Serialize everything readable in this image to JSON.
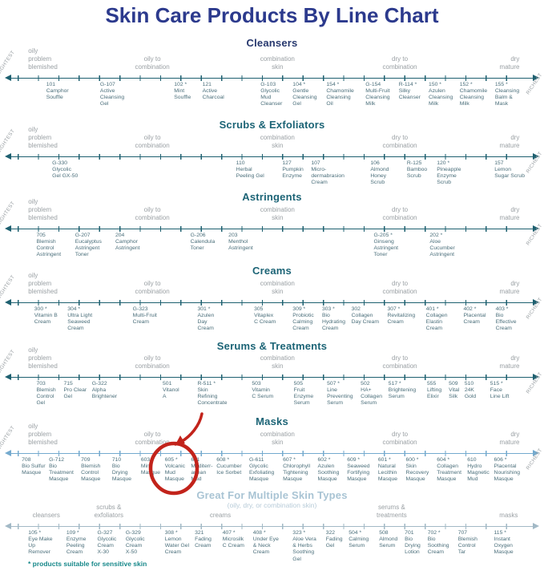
{
  "title": "Skin Care Products By Line Chart",
  "footnote": "* products suitable for sensitive skin",
  "scale_labels": {
    "left": "LIGHTEST",
    "right": "RICHEST"
  },
  "annotation": {
    "highlighted_product": "605 * Volcanic Mud Masque",
    "color": "#c2231b",
    "shapes": [
      "circle",
      "curved-arrow"
    ]
  },
  "chart_data": {
    "type": "line",
    "variant": "horizontal number-line product positioning chart (7 stacked lines)",
    "xlim": [
      0,
      100
    ],
    "x_meaning": "position along line, 0 = LIGHTEST (left) to 100 = RICHEST (right)",
    "legend_position": "none",
    "sections": [
      {
        "title": "Cleansers",
        "title_color": "#27386e",
        "axis_color": "#1e6070",
        "edge_labels": true,
        "categories": [
          {
            "label": "oily\nproblem\nblemished",
            "x": 5.2,
            "align": "left"
          },
          {
            "label": "oily to\ncombination",
            "x": 28,
            "align": "center"
          },
          {
            "label": "combination\nskin",
            "x": 51,
            "align": "center"
          },
          {
            "label": "dry to\ncombination",
            "x": 73.5,
            "align": "center"
          },
          {
            "label": "dry\nmature",
            "x": 95.5,
            "align": "right"
          }
        ],
        "products": [
          {
            "code": "101",
            "name": "Camphor\nSouffle",
            "x": 8.5
          },
          {
            "code": "G-107",
            "name": "Active\nCleansing\nGel",
            "x": 18.4
          },
          {
            "code": "102 *",
            "name": "Mint\nSouffle",
            "x": 32
          },
          {
            "code": "121",
            "name": "Active\nCharcoal",
            "x": 37.2
          },
          {
            "code": "G-103",
            "name": "Glycolic\nMud\nCleanser",
            "x": 47.9
          },
          {
            "code": "104 *",
            "name": "Gentle\nCleansing\nGel",
            "x": 53.8
          },
          {
            "code": "154 *",
            "name": "Chamomile\nCleansing\nOil",
            "x": 60
          },
          {
            "code": "G-154",
            "name": "Multi-Fruit\nCleansing\nMilk",
            "x": 67.2
          },
          {
            "code": "R-114 *",
            "name": "Silky\nCleanser",
            "x": 73.3
          },
          {
            "code": "150 *",
            "name": "Azulen\nCleansing\nMilk",
            "x": 78.8
          },
          {
            "code": "152 *",
            "name": "Chamomile\nCleansing\nMilk",
            "x": 84.5
          },
          {
            "code": "155 *",
            "name": "Cleansing\nBalm &\nMask",
            "x": 91
          }
        ]
      },
      {
        "title": "Scrubs & Exfoliators",
        "title_color": "#1c6476",
        "axis_color": "#1e6070",
        "edge_labels": true,
        "categories": [
          {
            "label": "oily\nproblem\nblemished",
            "x": 5.2,
            "align": "left"
          },
          {
            "label": "oily to\ncombination",
            "x": 28,
            "align": "center"
          },
          {
            "label": "combination\nskin",
            "x": 51,
            "align": "center"
          },
          {
            "label": "dry to\ncombination",
            "x": 73.5,
            "align": "center"
          },
          {
            "label": "dry\nmature",
            "x": 95.5,
            "align": "right"
          }
        ],
        "products": [
          {
            "code": "G-330",
            "name": "Glycolic\nGel GX-50",
            "x": 9.6
          },
          {
            "code": "110",
            "name": "Herbal\nPeeling Gel",
            "x": 43.4
          },
          {
            "code": "127",
            "name": "Pumpkin\nEnzyme",
            "x": 51.9
          },
          {
            "code": "107",
            "name": "Micro-\ndermabrasion\nCream",
            "x": 57.2
          },
          {
            "code": "106",
            "name": "Almond\nHoney\nScrub",
            "x": 68.1
          },
          {
            "code": "R-125",
            "name": "Bamboo\nScrub",
            "x": 74.8
          },
          {
            "code": "120 *",
            "name": "Pineapple\nEnzyme\nScrub",
            "x": 80.3
          },
          {
            "code": "157",
            "name": "Lemon\nSugar Scrub",
            "x": 90.9
          }
        ]
      },
      {
        "title": "Astringents",
        "title_color": "#1c6476",
        "axis_color": "#1e6070",
        "edge_labels": true,
        "categories": [
          {
            "label": "oily\nproblem\nblemished",
            "x": 5.2,
            "align": "left"
          },
          {
            "label": "oily to\ncombination",
            "x": 28,
            "align": "center"
          },
          {
            "label": "combination\nskin",
            "x": 51,
            "align": "center"
          },
          {
            "label": "dry to\ncombination",
            "x": 73.5,
            "align": "center"
          },
          {
            "label": "dry\nmature",
            "x": 95.5,
            "align": "right"
          }
        ],
        "products": [
          {
            "code": "705",
            "name": "Blemish\nControl\nAstringent",
            "x": 6.7
          },
          {
            "code": "G-207",
            "name": "Eucalyptus\nAstringent\nToner",
            "x": 13.8
          },
          {
            "code": "204",
            "name": "Camphor\nAstringent",
            "x": 21.2
          },
          {
            "code": "G-206",
            "name": "Calendula\nToner",
            "x": 35
          },
          {
            "code": "203",
            "name": "Menthol\nAstringent",
            "x": 42
          },
          {
            "code": "G-205 *",
            "name": "Ginseng\nAstringent\nToner",
            "x": 68.7
          },
          {
            "code": "202 *",
            "name": "Aloe\nCucumber\nAstringent",
            "x": 79
          }
        ]
      },
      {
        "title": "Creams",
        "title_color": "#1c6476",
        "axis_color": "#1e6070",
        "edge_labels": true,
        "categories": [
          {
            "label": "oily\nproblem\nblemished",
            "x": 5.2,
            "align": "left"
          },
          {
            "label": "oily to\ncombination",
            "x": 28,
            "align": "center"
          },
          {
            "label": "combination\nskin",
            "x": 51,
            "align": "center"
          },
          {
            "label": "dry to\ncombination",
            "x": 73.5,
            "align": "center"
          },
          {
            "label": "dry\nmature",
            "x": 95.5,
            "align": "right"
          }
        ],
        "products": [
          {
            "code": "300 *",
            "name": "Vitamin B\nCream",
            "x": 6.3
          },
          {
            "code": "304 *",
            "name": "Ultra Light\nSeaweed\nCream",
            "x": 12.4
          },
          {
            "code": "G-323",
            "name": "Multi-Fruit\nCream",
            "x": 24.4
          },
          {
            "code": "301 *",
            "name": "Azulen\nDay\nCream",
            "x": 36.3
          },
          {
            "code": "305",
            "name": "Vitaplex\nC Cream",
            "x": 46.7
          },
          {
            "code": "309 *",
            "name": "Probiotic\nCalming\nCream",
            "x": 53.8
          },
          {
            "code": "303 *",
            "name": "Bio\nHydrating\nCream",
            "x": 59.2
          },
          {
            "code": "302",
            "name": "Collagen\nDay Cream",
            "x": 64.6
          },
          {
            "code": "307 *",
            "name": "Revitalizing\nCream",
            "x": 71.2
          },
          {
            "code": "401 *",
            "name": "Collagen\nElastin\nCream",
            "x": 78.3
          },
          {
            "code": "402 *",
            "name": "Placental\nCream",
            "x": 85.2
          },
          {
            "code": "403 *",
            "name": "Bio\nEffective\nCream",
            "x": 91.1
          }
        ]
      },
      {
        "title": "Serums & Treatments",
        "title_color": "#1c6476",
        "axis_color": "#1e6070",
        "edge_labels": true,
        "categories": [
          {
            "label": "oily\nproblem\nblemished",
            "x": 5.2,
            "align": "left"
          },
          {
            "label": "oily to\ncombination",
            "x": 28,
            "align": "center"
          },
          {
            "label": "combination\nskin",
            "x": 51,
            "align": "center"
          },
          {
            "label": "dry to\ncombination",
            "x": 73.5,
            "align": "center"
          },
          {
            "label": "dry\nmature",
            "x": 95.5,
            "align": "right"
          }
        ],
        "products": [
          {
            "code": "703",
            "name": "Blemish\nControl\nGel",
            "x": 6.7
          },
          {
            "code": "715",
            "name": "Pro Clear\nGel",
            "x": 11.7
          },
          {
            "code": "G-322",
            "name": "Alpha\nBrightener",
            "x": 16.9
          },
          {
            "code": "501",
            "name": "Vitanol\nA",
            "x": 29.9
          },
          {
            "code": "R-511 *",
            "name": "Skin\nRefining\nConcentrate",
            "x": 36.3
          },
          {
            "code": "503",
            "name": "Vitamin\nC Serum",
            "x": 46.3
          },
          {
            "code": "505",
            "name": "Fruit\nEnzyme\nSerum",
            "x": 54
          },
          {
            "code": "507 *",
            "name": "Line\nPreventing\nSerum",
            "x": 60.1
          },
          {
            "code": "502",
            "name": "HA+\nCollagen\nSerum",
            "x": 66.3
          },
          {
            "code": "517 *",
            "name": "Brightening\nSerum",
            "x": 71.4
          },
          {
            "code": "555",
            "name": "Lifting\nElixir",
            "x": 78.5
          },
          {
            "code": "509",
            "name": "Vital\nSilk",
            "x": 82.5
          },
          {
            "code": "510",
            "name": "24K\nGold",
            "x": 85.4
          },
          {
            "code": "515 *",
            "name": "Face\nLine Lift",
            "x": 90.1
          }
        ]
      },
      {
        "title": "Masks",
        "title_color": "#1c6476",
        "axis_color": "#74aace",
        "edge_labels": true,
        "categories": [
          {
            "label": "oily\nproblem\nblemished",
            "x": 5.2,
            "align": "left"
          },
          {
            "label": "oily to\ncombination",
            "x": 28,
            "align": "center"
          },
          {
            "label": "combination\nskin",
            "x": 51,
            "align": "center"
          },
          {
            "label": "dry to\ncombination",
            "x": 73.5,
            "align": "center"
          },
          {
            "label": "dry\nmature",
            "x": 95.5,
            "align": "right"
          }
        ],
        "products": [
          {
            "code": "708",
            "name": "Bio Sulfur\nMasque",
            "x": 4
          },
          {
            "code": "G-712",
            "name": "Bio\nTreatment\nMasque",
            "x": 9
          },
          {
            "code": "709",
            "name": "Blemish\nControl\nMasque",
            "x": 14.9
          },
          {
            "code": "710",
            "name": "Bio\nDrying\nMasque",
            "x": 20.6
          },
          {
            "code": "603",
            "name": "Mint\nMasque",
            "x": 25.9
          },
          {
            "code": "605 *",
            "name": "Volcanic\nMud\nMasque",
            "x": 30.3
          },
          {
            "code": "611",
            "name": "Mediterr-\nanean\nMud",
            "x": 35.1
          },
          {
            "code": "608 *",
            "name": "Cucumber\nIce Sorbet",
            "x": 39.8
          },
          {
            "code": "G-611",
            "name": "Glycolic\nExfoliating\nMasque",
            "x": 45.8
          },
          {
            "code": "607 *",
            "name": "Chlorophyll\nTightening\nMasque",
            "x": 52
          },
          {
            "code": "602 *",
            "name": "Azulen\nSoothing\nMasque",
            "x": 58.4
          },
          {
            "code": "609 *",
            "name": "Seaweed\nFortifying\nMasque",
            "x": 63.8
          },
          {
            "code": "601 *",
            "name": "Natural\nLecithin\nMasque",
            "x": 69.5
          },
          {
            "code": "600 *",
            "name": "Skin\nRecovery\nMasque",
            "x": 74.6
          },
          {
            "code": "604 *",
            "name": "Collagen\nTreatment\nMasque",
            "x": 80.3
          },
          {
            "code": "610",
            "name": "Hydro\nMagnetic\nMud",
            "x": 85.9
          },
          {
            "code": "606 *",
            "name": "Placental\nNourishing\nMasque",
            "x": 90.8
          }
        ]
      },
      {
        "title": "Great For Multiple Skin Types",
        "title_color": "#a9c4d4",
        "subtitle": "(oily, dry, or combination skin)",
        "axis_color": "#a2b9c6",
        "edge_labels": false,
        "categories": [
          {
            "label": "cleansers",
            "x": 8.5,
            "align": "center"
          },
          {
            "label": "scrubs &\nexfoliators",
            "x": 20,
            "align": "center"
          },
          {
            "label": "creams",
            "x": 40.5,
            "align": "center"
          },
          {
            "label": "serums &\ntreatments",
            "x": 72,
            "align": "center"
          },
          {
            "label": "masks",
            "x": 93.5,
            "align": "center"
          }
        ],
        "products": [
          {
            "code": "105 *",
            "name": "Eye Make\nUp\nRemover",
            "x": 5.2
          },
          {
            "code": "109 *",
            "name": "Enzyme\nPeeling\nCream",
            "x": 12.2
          },
          {
            "code": "G-327",
            "name": "Glycolic\nCream\nX-30",
            "x": 17.9
          },
          {
            "code": "G-329",
            "name": "Glycolic\nCream\nX-50",
            "x": 23.1
          },
          {
            "code": "308 *",
            "name": "Lemon\nWater Gel\nCream",
            "x": 30.3
          },
          {
            "code": "321",
            "name": "Fading\nCream",
            "x": 35.8
          },
          {
            "code": "407 *",
            "name": "Microsilk\nC Cream",
            "x": 40.9
          },
          {
            "code": "408 *",
            "name": "Under Eye\n& Neck\nCream",
            "x": 46.5
          },
          {
            "code": "323 *",
            "name": "Aloe Vera\n& Herbs\nSoothing\nGel",
            "x": 53.8
          },
          {
            "code": "322",
            "name": "Fading\nGel",
            "x": 59.9
          },
          {
            "code": "504 *",
            "name": "Calming\nSerum",
            "x": 64.1
          },
          {
            "code": "508",
            "name": "Almond\nSerum",
            "x": 69.7
          },
          {
            "code": "701",
            "name": "Bio\nDrying\nLotion",
            "x": 74.4
          },
          {
            "code": "702 *",
            "name": "Bio\nSoothing\nCream",
            "x": 78.6
          },
          {
            "code": "707",
            "name": "Blemish\nControl\nTar",
            "x": 84.2
          },
          {
            "code": "115 *",
            "name": "Instant\nOxygen\nMasque",
            "x": 90.8
          }
        ]
      }
    ]
  }
}
